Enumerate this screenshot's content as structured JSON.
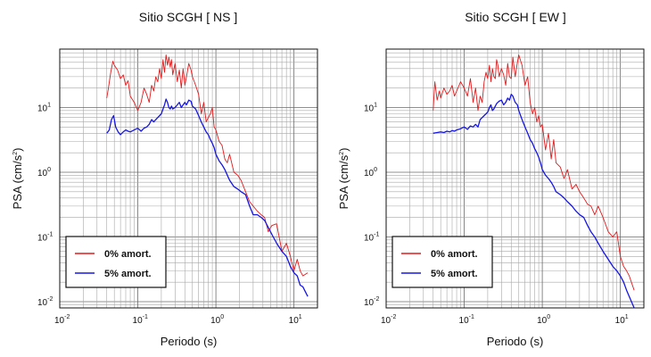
{
  "chart_data": [
    {
      "type": "line",
      "title": "Sitio SCGH [ NS ]",
      "xlabel": "Periodo (s)",
      "ylabel": "PSA (cm/s²)",
      "ylabel_base": "PSA (cm/s",
      "ylabel_sup": "2",
      "ylabel_end": ")",
      "xscale": "log",
      "yscale": "log",
      "xlim": [
        0.01,
        20
      ],
      "ylim": [
        0.008,
        80
      ],
      "grid": true,
      "x_ticks": [
        {
          "base": "10",
          "exp": "-2"
        },
        {
          "base": "10",
          "exp": "-1"
        },
        {
          "base": "10",
          "exp": "0"
        },
        {
          "base": "10",
          "exp": "1"
        }
      ],
      "y_ticks": [
        {
          "base": "10",
          "exp": "-2"
        },
        {
          "base": "10",
          "exp": "-1"
        },
        {
          "base": "10",
          "exp": "0"
        },
        {
          "base": "10",
          "exp": "1"
        }
      ],
      "legend_position": "bottom-left",
      "series": [
        {
          "name": "0% amort.",
          "color": "#e31a1c",
          "x": [
            0.04,
            0.042,
            0.045,
            0.048,
            0.05,
            0.055,
            0.06,
            0.065,
            0.07,
            0.075,
            0.08,
            0.09,
            0.1,
            0.11,
            0.12,
            0.13,
            0.14,
            0.15,
            0.16,
            0.17,
            0.18,
            0.19,
            0.2,
            0.21,
            0.22,
            0.23,
            0.24,
            0.25,
            0.26,
            0.27,
            0.28,
            0.3,
            0.32,
            0.34,
            0.36,
            0.38,
            0.4,
            0.42,
            0.45,
            0.48,
            0.5,
            0.55,
            0.6,
            0.65,
            0.7,
            0.75,
            0.8,
            0.85,
            0.9,
            0.95,
            1.0,
            1.1,
            1.2,
            1.3,
            1.4,
            1.5,
            1.7,
            1.9,
            2.1,
            2.4,
            2.7,
            3.0,
            3.4,
            3.8,
            4.2,
            4.7,
            5.2,
            6.0,
            7.0,
            8.0,
            9.0,
            10.0,
            11.0,
            12.0,
            13.0,
            15.0
          ],
          "y": [
            14,
            20,
            35,
            52,
            45,
            38,
            28,
            32,
            22,
            26,
            15,
            12,
            9,
            12,
            20,
            16,
            12,
            22,
            18,
            30,
            25,
            40,
            28,
            55,
            35,
            65,
            45,
            60,
            42,
            55,
            32,
            48,
            25,
            38,
            20,
            40,
            22,
            30,
            48,
            38,
            30,
            22,
            16,
            8,
            12,
            6,
            7,
            8,
            10,
            5,
            4.5,
            3,
            2.6,
            1.6,
            1.4,
            1.9,
            1.0,
            0.9,
            0.75,
            0.5,
            0.35,
            0.3,
            0.25,
            0.22,
            0.2,
            0.12,
            0.15,
            0.16,
            0.06,
            0.08,
            0.05,
            0.03,
            0.045,
            0.03,
            0.025,
            0.028
          ]
        },
        {
          "name": "5% amort.",
          "color": "#1616e6",
          "x": [
            0.04,
            0.043,
            0.046,
            0.049,
            0.052,
            0.056,
            0.06,
            0.065,
            0.07,
            0.075,
            0.08,
            0.09,
            0.1,
            0.11,
            0.12,
            0.13,
            0.14,
            0.15,
            0.16,
            0.17,
            0.18,
            0.19,
            0.2,
            0.21,
            0.22,
            0.23,
            0.24,
            0.25,
            0.26,
            0.27,
            0.28,
            0.3,
            0.32,
            0.34,
            0.36,
            0.38,
            0.4,
            0.42,
            0.45,
            0.48,
            0.5,
            0.55,
            0.6,
            0.65,
            0.7,
            0.75,
            0.8,
            0.85,
            0.9,
            0.95,
            1.0,
            1.1,
            1.2,
            1.3,
            1.4,
            1.5,
            1.7,
            1.9,
            2.1,
            2.4,
            2.7,
            3.0,
            3.4,
            3.8,
            4.2,
            4.7,
            5.2,
            6.0,
            7.0,
            8.0,
            9.0,
            10.0,
            11.0,
            12.0,
            13.0,
            15.0
          ],
          "y": [
            4.0,
            4.5,
            6.5,
            7.5,
            5.0,
            4.2,
            3.8,
            4.2,
            4.5,
            4.3,
            4.2,
            4.5,
            4.8,
            4.3,
            4.8,
            5.0,
            5.5,
            6.5,
            6.0,
            6.5,
            7.0,
            7.5,
            8.0,
            9.5,
            11,
            13.5,
            12,
            10,
            9.5,
            10.5,
            9.5,
            10,
            11,
            12,
            10,
            11,
            12,
            11,
            13,
            12.5,
            10.5,
            9.5,
            7.5,
            6.0,
            5.0,
            4.2,
            3.8,
            3.2,
            2.8,
            2.4,
            1.9,
            1.5,
            1.3,
            1.1,
            0.9,
            0.75,
            0.6,
            0.55,
            0.5,
            0.45,
            0.3,
            0.22,
            0.22,
            0.2,
            0.18,
            0.14,
            0.11,
            0.08,
            0.06,
            0.05,
            0.035,
            0.028,
            0.025,
            0.018,
            0.017,
            0.012
          ]
        }
      ]
    },
    {
      "type": "line",
      "title": "Sitio SCGH [ EW ]",
      "xlabel": "Periodo (s)",
      "ylabel": "PSA (cm/s²)",
      "ylabel_base": "PSA (cm/s",
      "ylabel_sup": "2",
      "ylabel_end": ")",
      "xscale": "log",
      "yscale": "log",
      "xlim": [
        0.01,
        20
      ],
      "ylim": [
        0.008,
        80
      ],
      "grid": true,
      "x_ticks": [
        {
          "base": "10",
          "exp": "-2"
        },
        {
          "base": "10",
          "exp": "-1"
        },
        {
          "base": "10",
          "exp": "0"
        },
        {
          "base": "10",
          "exp": "1"
        }
      ],
      "y_ticks": [
        {
          "base": "10",
          "exp": "-2"
        },
        {
          "base": "10",
          "exp": "-1"
        },
        {
          "base": "10",
          "exp": "0"
        },
        {
          "base": "10",
          "exp": "1"
        }
      ],
      "legend_position": "bottom-left",
      "series": [
        {
          "name": "0% amort.",
          "color": "#e31a1c",
          "x": [
            0.04,
            0.042,
            0.045,
            0.048,
            0.05,
            0.055,
            0.06,
            0.065,
            0.07,
            0.075,
            0.08,
            0.09,
            0.1,
            0.11,
            0.12,
            0.13,
            0.14,
            0.15,
            0.16,
            0.17,
            0.18,
            0.19,
            0.2,
            0.21,
            0.22,
            0.23,
            0.24,
            0.25,
            0.26,
            0.27,
            0.28,
            0.3,
            0.32,
            0.34,
            0.36,
            0.38,
            0.4,
            0.42,
            0.45,
            0.48,
            0.5,
            0.55,
            0.6,
            0.65,
            0.7,
            0.75,
            0.8,
            0.85,
            0.9,
            0.95,
            1.0,
            1.1,
            1.2,
            1.3,
            1.4,
            1.5,
            1.7,
            1.9,
            2.1,
            2.4,
            2.7,
            3.0,
            3.4,
            3.8,
            4.2,
            4.7,
            5.2,
            6.0,
            7.0,
            8.0,
            9.0,
            10.0,
            11.0,
            12.0,
            13.0,
            15.0
          ],
          "y": [
            9,
            25,
            13,
            18,
            14,
            20,
            16,
            18,
            22,
            15,
            18,
            25,
            20,
            15,
            28,
            12,
            20,
            9,
            15,
            12,
            25,
            35,
            28,
            45,
            25,
            40,
            30,
            28,
            55,
            45,
            30,
            40,
            32,
            22,
            48,
            30,
            28,
            60,
            30,
            50,
            65,
            45,
            22,
            30,
            12,
            8,
            10,
            6,
            7.5,
            5.0,
            5.5,
            2.2,
            4.0,
            1.6,
            3.2,
            1.4,
            1.2,
            0.8,
            1.1,
            0.55,
            0.65,
            0.5,
            0.4,
            0.32,
            0.3,
            0.22,
            0.3,
            0.2,
            0.12,
            0.1,
            0.12,
            0.05,
            0.035,
            0.03,
            0.025,
            0.015
          ]
        },
        {
          "name": "5% amort.",
          "color": "#1616e6",
          "x": [
            0.04,
            0.045,
            0.05,
            0.055,
            0.06,
            0.065,
            0.07,
            0.075,
            0.08,
            0.09,
            0.1,
            0.11,
            0.12,
            0.13,
            0.14,
            0.15,
            0.16,
            0.17,
            0.18,
            0.19,
            0.2,
            0.21,
            0.22,
            0.23,
            0.24,
            0.25,
            0.26,
            0.27,
            0.28,
            0.3,
            0.32,
            0.34,
            0.36,
            0.38,
            0.4,
            0.42,
            0.45,
            0.48,
            0.5,
            0.55,
            0.6,
            0.65,
            0.7,
            0.75,
            0.8,
            0.85,
            0.9,
            0.95,
            1.0,
            1.1,
            1.2,
            1.3,
            1.4,
            1.5,
            1.7,
            1.9,
            2.1,
            2.4,
            2.7,
            3.0,
            3.4,
            3.8,
            4.2,
            4.7,
            5.2,
            6.0,
            7.0,
            8.0,
            9.0,
            10.0,
            11.0,
            12.0,
            13.0,
            15.0
          ],
          "y": [
            4.0,
            4.1,
            4.2,
            4.1,
            4.3,
            4.2,
            4.4,
            4.3,
            4.5,
            4.7,
            5.0,
            4.6,
            5.2,
            5.0,
            5.5,
            5.0,
            6.5,
            7.0,
            7.5,
            8.0,
            8.5,
            10,
            11,
            9.0,
            9.5,
            10.5,
            11.5,
            12,
            12.5,
            13,
            11,
            12,
            14,
            13,
            16,
            15,
            12,
            11,
            9.0,
            6.5,
            5.0,
            4.0,
            3.2,
            2.8,
            2.3,
            2.0,
            1.7,
            1.4,
            1.1,
            0.9,
            0.8,
            0.7,
            0.6,
            0.5,
            0.45,
            0.4,
            0.35,
            0.3,
            0.25,
            0.22,
            0.2,
            0.15,
            0.12,
            0.1,
            0.08,
            0.06,
            0.045,
            0.035,
            0.03,
            0.025,
            0.02,
            0.015,
            0.012,
            0.008
          ]
        }
      ]
    }
  ]
}
